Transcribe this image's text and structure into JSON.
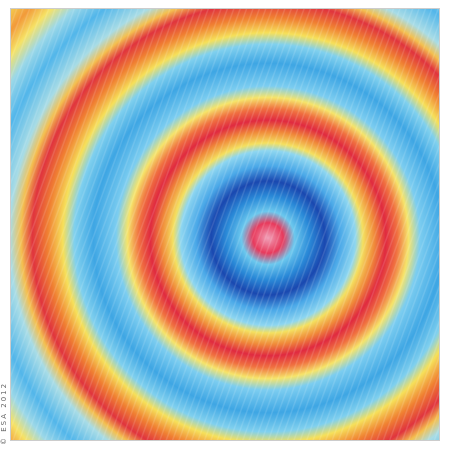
{
  "credit": "© ESA 2012"
}
